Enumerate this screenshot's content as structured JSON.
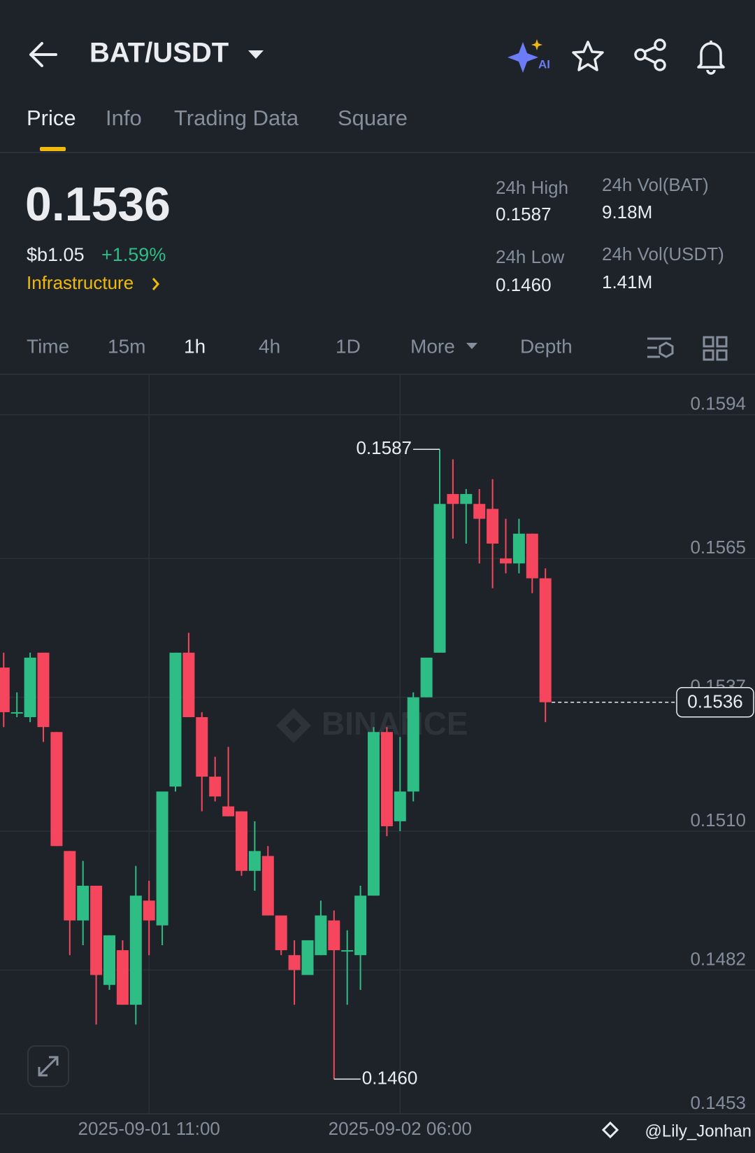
{
  "header": {
    "title": "BAT/USDT",
    "ai_badge": "AI"
  },
  "tabs": [
    "Price",
    "Info",
    "Trading Data",
    "Square"
  ],
  "ticker": {
    "price": "0.1536",
    "fiat": "$b1.05",
    "change": "+1.59%",
    "sector": "Infrastructure"
  },
  "stats": [
    {
      "label": "24h High",
      "value": "0.1587"
    },
    {
      "label": "24h Vol(BAT)",
      "value": "9.18M"
    },
    {
      "label": "24h Low",
      "value": "0.1460"
    },
    {
      "label": "24h Vol(USDT)",
      "value": "1.41M"
    }
  ],
  "intervals": [
    "Time",
    "15m",
    "1h",
    "4h",
    "1D",
    "More",
    "Depth"
  ],
  "watermark": "BINANCE",
  "credit": "@Lily_Jonhan",
  "chart_data": {
    "type": "candlestick",
    "categories": [
      null,
      null,
      null,
      null,
      null,
      null,
      null,
      null,
      null,
      null,
      null,
      "2025-09-01 11:00",
      null,
      null,
      null,
      null,
      null,
      null,
      null,
      null,
      null,
      null,
      null,
      null,
      null,
      null,
      null,
      null,
      null,
      null,
      "2025-09-02 06:00",
      null,
      null,
      null,
      null,
      null,
      null,
      null,
      null,
      null,
      null,
      null
    ],
    "open": [
      0.1543,
      0.1534,
      0.1533,
      0.1546,
      0.153,
      0.1506,
      0.1492,
      0.1499,
      0.1479,
      0.1486,
      0.1475,
      0.1496,
      0.1491,
      0.1519,
      0.1546,
      0.1533,
      0.1521,
      0.1515,
      0.1514,
      0.1502,
      0.1505,
      0.1493,
      0.1485,
      0.1481,
      0.1485,
      0.1492,
      0.1486,
      0.1485,
      0.1497,
      0.153,
      0.1512,
      0.1518,
      0.1537,
      0.1546,
      0.1578,
      0.1576,
      0.1576,
      0.1575,
      0.1565,
      0.1564,
      0.157,
      0.1561
    ],
    "high": [
      0.1546,
      0.1538,
      0.1546,
      0.1546,
      0.153,
      0.1506,
      0.1504,
      0.1499,
      0.1489,
      0.1488,
      0.1503,
      0.15,
      0.1518,
      0.1546,
      0.155,
      0.1534,
      0.1525,
      0.1527,
      0.1514,
      0.1512,
      0.1507,
      0.1493,
      0.1488,
      0.1488,
      0.1496,
      0.1494,
      0.149,
      0.1499,
      0.1531,
      0.1531,
      0.1529,
      0.1538,
      0.1545,
      0.1587,
      0.1585,
      0.1579,
      0.1579,
      0.1581,
      0.1573,
      0.1573,
      0.157,
      0.1563
    ],
    "low": [
      0.1531,
      0.1533,
      0.1532,
      0.1528,
      0.1507,
      0.1485,
      0.1487,
      0.1471,
      0.1478,
      0.1475,
      0.1471,
      0.1485,
      0.1487,
      0.1518,
      0.1533,
      0.1514,
      0.1516,
      0.1513,
      0.1501,
      0.1498,
      0.1493,
      0.1485,
      0.1475,
      0.1481,
      0.1485,
      0.146,
      0.1475,
      0.1478,
      0.1497,
      0.1509,
      0.151,
      0.1516,
      0.1537,
      0.1546,
      0.1569,
      0.1568,
      0.1564,
      0.1559,
      0.1562,
      0.1562,
      0.1558,
      0.1532
    ],
    "close": [
      0.1534,
      0.1534,
      0.1545,
      0.1531,
      0.1507,
      0.1492,
      0.1499,
      0.1481,
      0.1489,
      0.1475,
      0.1497,
      0.1492,
      0.1518,
      0.1546,
      0.1533,
      0.1521,
      0.1517,
      0.1513,
      0.1502,
      0.1506,
      0.1493,
      0.1486,
      0.1482,
      0.1488,
      0.1493,
      0.1486,
      0.1486,
      0.1497,
      0.153,
      0.1511,
      0.1518,
      0.1537,
      0.1545,
      0.1576,
      0.1576,
      0.1578,
      0.1573,
      0.1568,
      0.1564,
      0.157,
      0.1561,
      0.1536
    ],
    "up_color": "#2ebd85",
    "down_color": "#f6465d",
    "ylim": [
      0.1453,
      0.1602
    ],
    "yticks": [
      0.1594,
      0.1565,
      0.1537,
      {
        "value": 0.151,
        "label": "0.1510"
      },
      0.1482,
      0.1453
    ],
    "grid": true,
    "high_label": "0.1587",
    "low_label": "0.1460",
    "last_price_label": "0.1536"
  }
}
